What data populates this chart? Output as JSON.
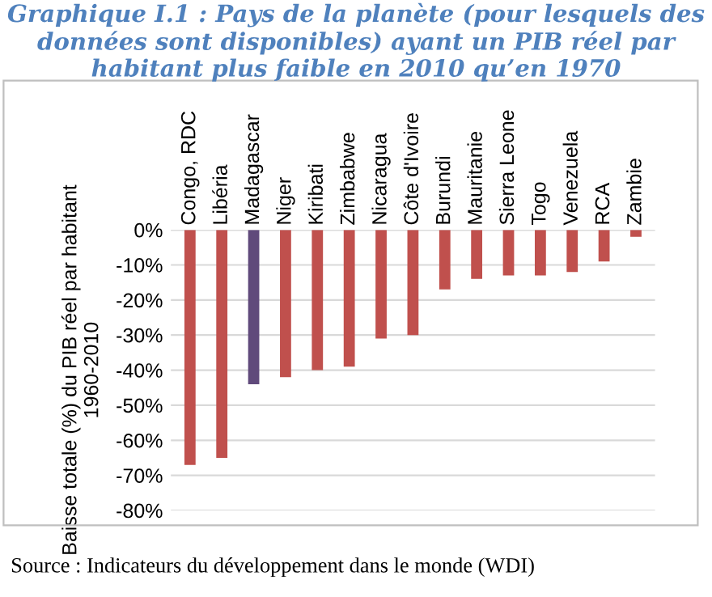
{
  "chart_data": {
    "type": "bar",
    "title": "Graphique I.1 : Pays de la planète (pour lesquels des données sont disponibles) ayant un PIB réel par habitant plus faible en 2010 qu’en 1970",
    "ylabel": "Baisse totale (%) du PIB réel par habitant 1960-2010",
    "categories": [
      "Congo, RDC",
      "Libéria",
      "Madagascar",
      "Niger",
      "Kiribati",
      "Zimbabwe",
      "Nicaragua",
      "Côte d'Ivoire",
      "Burundi",
      "Mauritanie",
      "Sierra Leone",
      "Togo",
      "Venezuela",
      "RCA",
      "Zambie"
    ],
    "values": [
      -67,
      -65,
      -44,
      -42,
      -40,
      -39,
      -31,
      -30,
      -17,
      -14,
      -13,
      -13,
      -12,
      -9,
      -2
    ],
    "colors": [
      "#c0504d",
      "#c0504d",
      "#604a7b",
      "#c0504d",
      "#c0504d",
      "#c0504d",
      "#c0504d",
      "#c0504d",
      "#c0504d",
      "#c0504d",
      "#c0504d",
      "#c0504d",
      "#c0504d",
      "#c0504d",
      "#c0504d"
    ],
    "ylim": [
      -80,
      0
    ],
    "yticks": [
      {
        "value": 0,
        "label": "0%"
      },
      {
        "value": -10,
        "label": "-10%"
      },
      {
        "value": -20,
        "label": "-20%"
      },
      {
        "value": -30,
        "label": "-30%"
      },
      {
        "value": -40,
        "label": "-40%"
      },
      {
        "value": -50,
        "label": "-50%"
      },
      {
        "value": -60,
        "label": "-60%"
      },
      {
        "value": -70,
        "label": "-70%"
      },
      {
        "value": -80,
        "label": "-80%"
      }
    ],
    "grid": "y",
    "annotations": [
      "Source : Indicateurs du développement dans le monde (WDI)"
    ]
  }
}
